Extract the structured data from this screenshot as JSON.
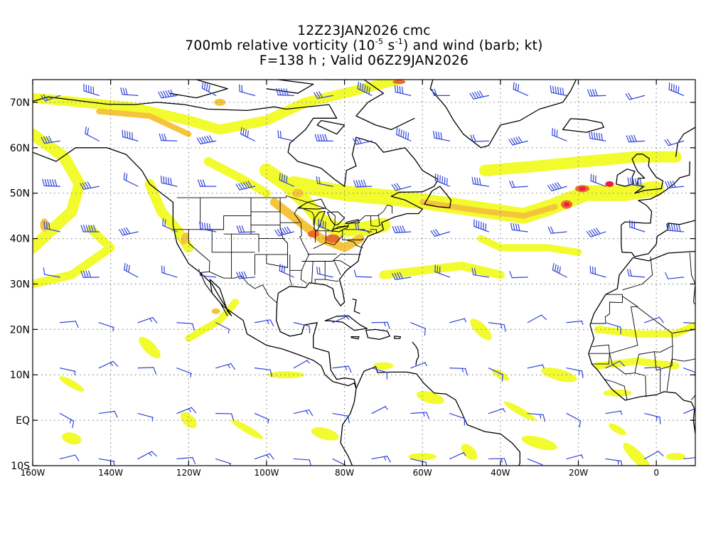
{
  "title": {
    "line1": "12Z23JAN2026 cmc",
    "line2_pre": "700mb relative vorticity (10",
    "line2_exp1": "-5",
    "line2_mid": " s",
    "line2_exp2": "-1",
    "line2_post": ") and wind (barb; kt)",
    "line3": "F=138 h ; Valid 06Z29JAN2026"
  },
  "map": {
    "lon_range": [
      -160,
      10
    ],
    "lat_range": [
      -10,
      75
    ],
    "lat_ticks": [
      {
        "value": 70,
        "label": "70N"
      },
      {
        "value": 60,
        "label": "60N"
      },
      {
        "value": 50,
        "label": "50N"
      },
      {
        "value": 40,
        "label": "40N"
      },
      {
        "value": 30,
        "label": "30N"
      },
      {
        "value": 20,
        "label": "20N"
      },
      {
        "value": 10,
        "label": "10N"
      },
      {
        "value": 0,
        "label": "EQ"
      },
      {
        "value": -10,
        "label": "10S"
      }
    ],
    "lon_ticks": [
      {
        "value": -160,
        "label": "160W"
      },
      {
        "value": -140,
        "label": "140W"
      },
      {
        "value": -120,
        "label": "120W"
      },
      {
        "value": -100,
        "label": "100W"
      },
      {
        "value": -80,
        "label": "80W"
      },
      {
        "value": -60,
        "label": "60W"
      },
      {
        "value": -40,
        "label": "40W"
      },
      {
        "value": -20,
        "label": "20W"
      },
      {
        "value": 0,
        "label": "0"
      }
    ],
    "colors": {
      "vort_low": "#f2fb2e",
      "vort_mid": "#f5c43a",
      "vort_high": "#ee6a2c",
      "vort_max": "#e8213a",
      "barb": "#2f44d8",
      "coast": "#000000",
      "grid": "#8a8a8a"
    }
  }
}
